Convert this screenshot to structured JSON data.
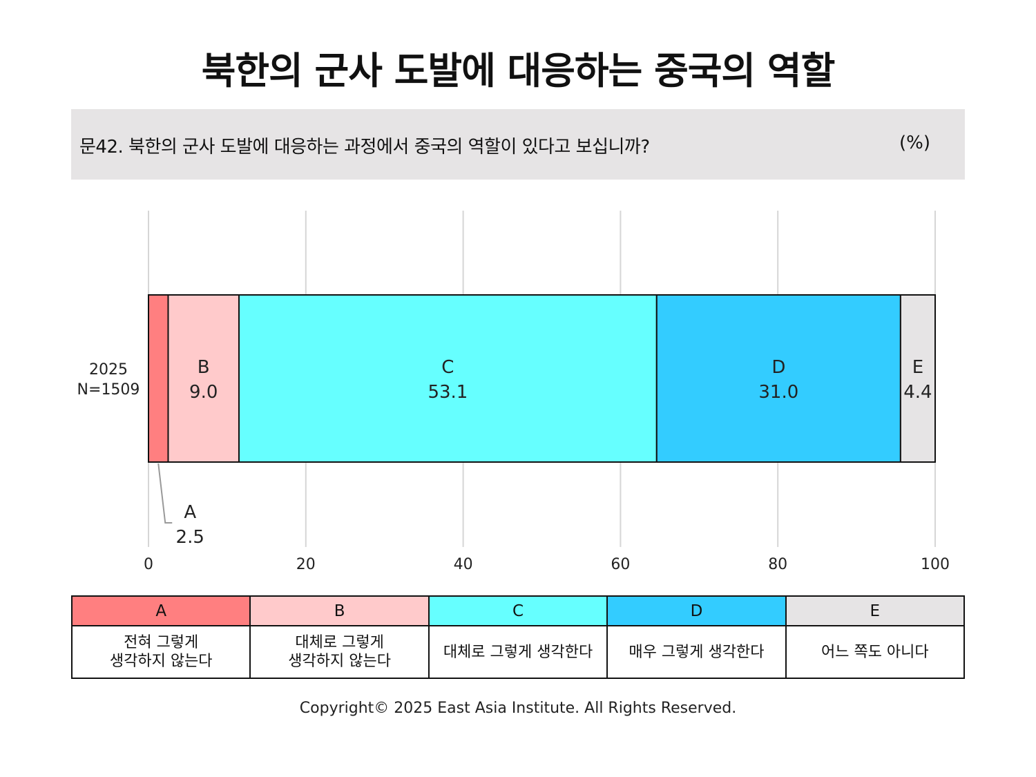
{
  "title": "북한의 군사 도발에 대응하는 중국의 역할",
  "question": {
    "text": "문42. 북한의 군사 도발에 대응하는 과정에서 중국의 역할이 있다고 보십니까?",
    "unit": "(%)"
  },
  "chart_data": {
    "type": "bar",
    "orientation": "horizontal",
    "stacked": true,
    "categories": [
      {
        "label": "2025",
        "sublabel": "N=1509"
      }
    ],
    "series": [
      {
        "name": "A",
        "values": [
          2.5
        ],
        "color": "#ff7f80"
      },
      {
        "name": "B",
        "values": [
          9.0
        ],
        "color": "#ffcacb"
      },
      {
        "name": "C",
        "values": [
          53.1
        ],
        "color": "#66ffff"
      },
      {
        "name": "D",
        "values": [
          31.0
        ],
        "color": "#33ccff"
      },
      {
        "name": "E",
        "values": [
          4.4
        ],
        "color": "#e6e4e5"
      }
    ],
    "value_labels": [
      "2.5",
      "9.0",
      "53.1",
      "31.0",
      "4.4"
    ],
    "xlim": [
      0,
      100
    ],
    "xticks": [
      0,
      20,
      40,
      60,
      80,
      100
    ],
    "grid": true,
    "gridColor": "#d6d6d6"
  },
  "legend": [
    {
      "key": "A",
      "desc": "전혀 그렇게\n생각하지 않는다",
      "color": "#ff7f80"
    },
    {
      "key": "B",
      "desc": "대체로 그렇게\n생각하지 않는다",
      "color": "#ffcacb"
    },
    {
      "key": "C",
      "desc": "대체로 그렇게 생각한다",
      "color": "#66ffff"
    },
    {
      "key": "D",
      "desc": "매우 그렇게 생각한다",
      "color": "#33ccff"
    },
    {
      "key": "E",
      "desc": "어느 쪽도 아니다",
      "color": "#e6e4e5"
    }
  ],
  "copyright": "Copyright© 2025 East Asia Institute. All Rights Reserved."
}
